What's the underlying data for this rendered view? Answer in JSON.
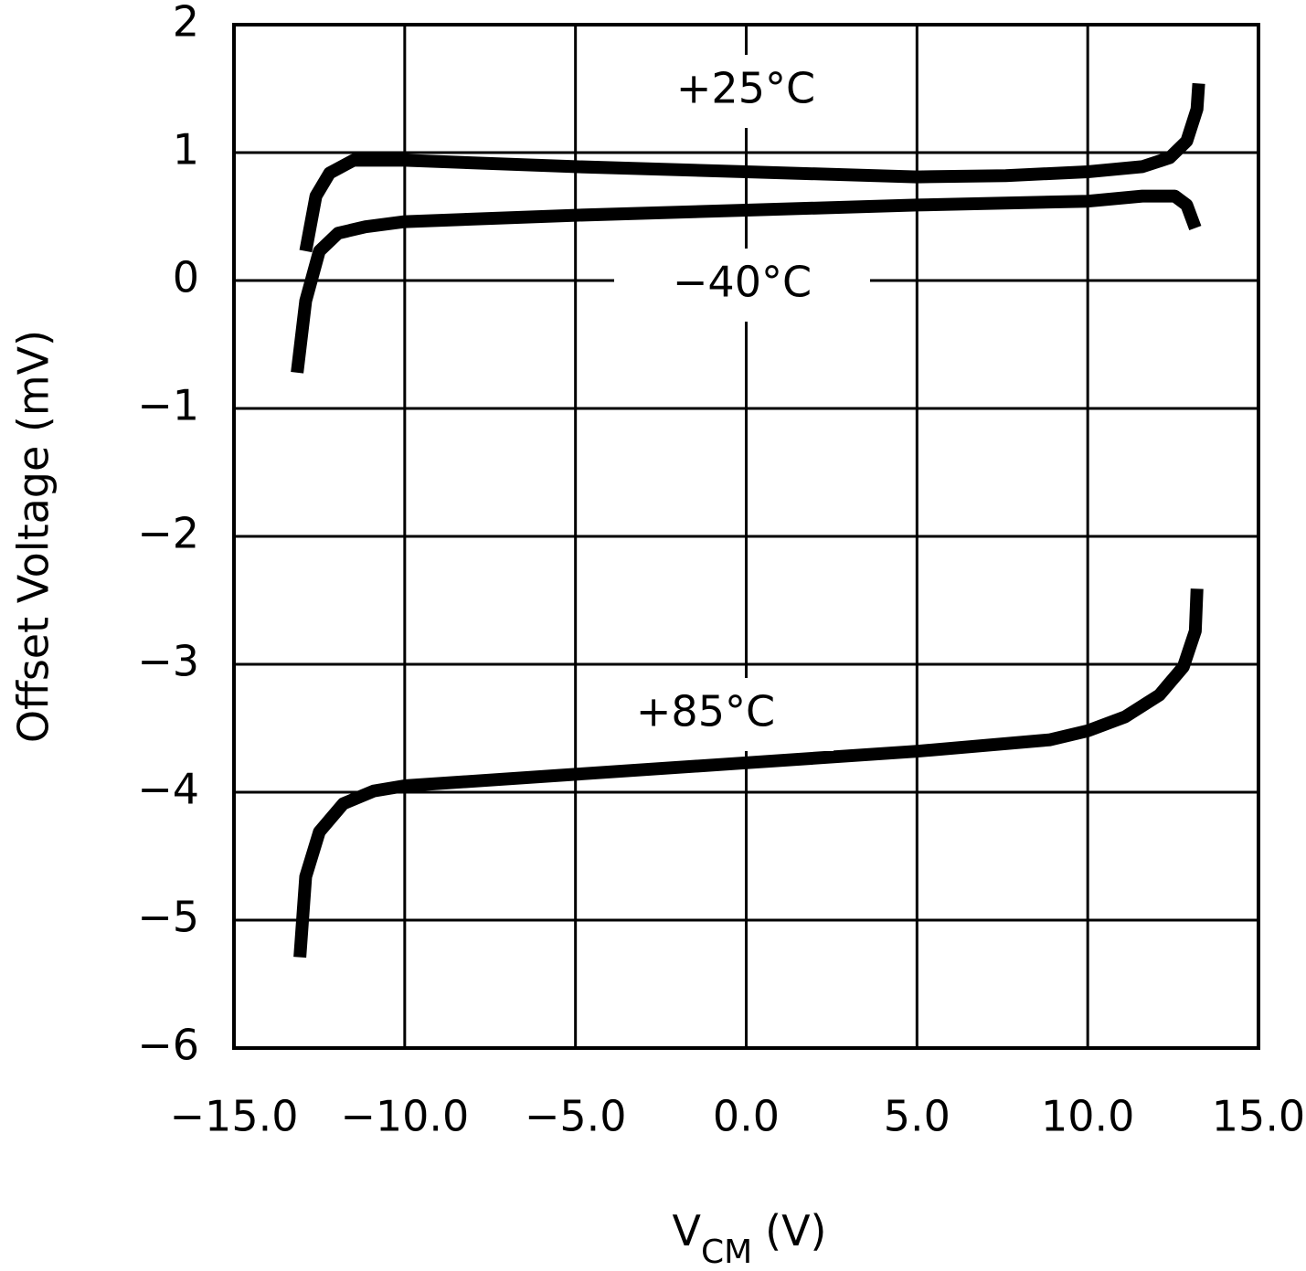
{
  "chart_data": {
    "type": "line",
    "xlabel": {
      "main": "V",
      "sub": "CM",
      "unit": "(V)"
    },
    "ylabel": "Offset Voltage (mV)",
    "xlim": [
      -15,
      15
    ],
    "ylim": [
      -6,
      2
    ],
    "xticks": [
      {
        "value": -15,
        "label": "−15.0"
      },
      {
        "value": -10,
        "label": "−10.0"
      },
      {
        "value": -5,
        "label": "−5.0"
      },
      {
        "value": 0,
        "label": "0.0"
      },
      {
        "value": 5,
        "label": "5.0"
      },
      {
        "value": 10,
        "label": "10.0"
      },
      {
        "value": 15,
        "label": "15.0"
      }
    ],
    "yticks": [
      {
        "value": -6,
        "label": "−6"
      },
      {
        "value": -5,
        "label": "−5"
      },
      {
        "value": -4,
        "label": "−4"
      },
      {
        "value": -3,
        "label": "−3"
      },
      {
        "value": -2,
        "label": "−2"
      },
      {
        "value": -1,
        "label": "−1"
      },
      0,
      1,
      2
    ],
    "grid": true,
    "series": [
      {
        "name": "+25°C",
        "color": "#000000",
        "x": [
          -12.9,
          -12.6,
          -12.2,
          -11.5,
          -10,
          -5,
          0,
          5,
          7.6,
          10,
          11.6,
          12.4,
          12.9,
          13.2,
          13.25
        ],
        "values": [
          0.23,
          0.66,
          0.84,
          0.94,
          0.94,
          0.89,
          0.85,
          0.81,
          0.82,
          0.85,
          0.89,
          0.96,
          1.09,
          1.34,
          1.54
        ]
      },
      {
        "name": "−40°C",
        "color": "#000000",
        "x": [
          -13.15,
          -12.9,
          -12.5,
          -11.95,
          -11.15,
          -10,
          -5,
          0,
          5,
          10,
          11.6,
          12.55,
          12.9,
          13.15
        ],
        "values": [
          -0.72,
          -0.16,
          0.23,
          0.37,
          0.42,
          0.46,
          0.51,
          0.55,
          0.59,
          0.62,
          0.66,
          0.66,
          0.59,
          0.41
        ]
      },
      {
        "name": "+85°C",
        "color": "#000000",
        "x": [
          -13.07,
          -12.9,
          -12.5,
          -11.8,
          -10.9,
          -10,
          -5,
          0,
          5,
          8.9,
          10,
          11.1,
          12.1,
          12.8,
          13.15,
          13.2
        ],
        "values": [
          -5.29,
          -4.66,
          -4.31,
          -4.09,
          -3.99,
          -3.95,
          -3.86,
          -3.77,
          -3.68,
          -3.59,
          -3.52,
          -3.41,
          -3.24,
          -3.02,
          -2.74,
          -2.41
        ]
      }
    ]
  }
}
